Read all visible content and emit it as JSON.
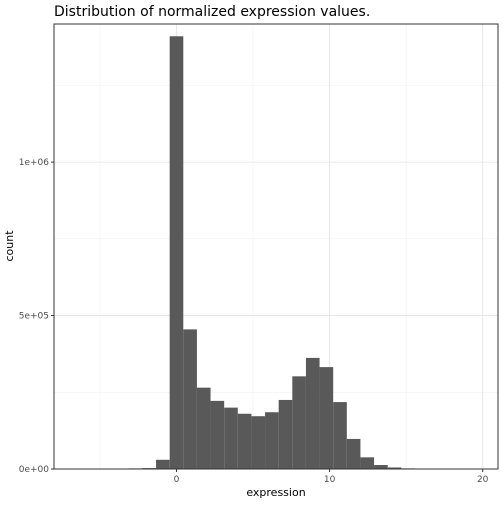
{
  "chart_data": {
    "type": "bar",
    "title": "Distribution of normalized expression values.",
    "xlabel": "expression",
    "ylabel": "count",
    "xlim": [
      -8,
      21
    ],
    "ylim": [
      0,
      1450000
    ],
    "x_ticks": [
      0,
      10,
      20
    ],
    "x_tick_labels": [
      "0",
      "10",
      "20"
    ],
    "y_ticks": [
      0,
      500000,
      1000000
    ],
    "y_tick_labels": [
      "0e+00",
      "5e+05",
      "1e+06"
    ],
    "grid": true,
    "theme": "bw",
    "bar_color": "#595959",
    "bin_width": 0.89,
    "bins": [
      {
        "x": -2.67,
        "count": 2000
      },
      {
        "x": -1.78,
        "count": 3000
      },
      {
        "x": -0.89,
        "count": 30000
      },
      {
        "x": 0.0,
        "count": 1410000
      },
      {
        "x": 0.89,
        "count": 455000
      },
      {
        "x": 1.78,
        "count": 265000
      },
      {
        "x": 2.67,
        "count": 222000
      },
      {
        "x": 3.56,
        "count": 200000
      },
      {
        "x": 4.45,
        "count": 180000
      },
      {
        "x": 5.34,
        "count": 172000
      },
      {
        "x": 6.23,
        "count": 185000
      },
      {
        "x": 7.12,
        "count": 225000
      },
      {
        "x": 8.01,
        "count": 302000
      },
      {
        "x": 8.9,
        "count": 362000
      },
      {
        "x": 9.79,
        "count": 332000
      },
      {
        "x": 10.68,
        "count": 218000
      },
      {
        "x": 11.57,
        "count": 98000
      },
      {
        "x": 12.46,
        "count": 38000
      },
      {
        "x": 13.35,
        "count": 13000
      },
      {
        "x": 14.24,
        "count": 5000
      },
      {
        "x": 15.13,
        "count": 2000
      }
    ]
  }
}
